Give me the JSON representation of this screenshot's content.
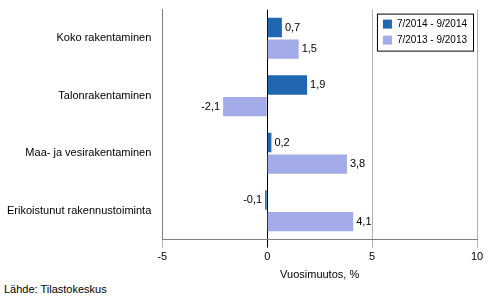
{
  "chart_data": {
    "type": "bar",
    "orientation": "horizontal",
    "categories": [
      "Koko rakentaminen",
      "Talonrakentaminen",
      "Maa- ja vesirakentaminen",
      "Erikoistunut rakennustoiminta"
    ],
    "series": [
      {
        "name": "7/2014 - 9/2014",
        "color": "#2166b0",
        "values": [
          0.7,
          1.9,
          0.2,
          -0.1
        ],
        "value_labels": [
          "0,7",
          "1,9",
          "0,2",
          "-0,1"
        ]
      },
      {
        "name": "7/2013 - 9/2013",
        "color": "#a3abe8",
        "values": [
          1.5,
          -2.1,
          3.8,
          4.1
        ],
        "value_labels": [
          "1,5",
          "-2,1",
          "3,8",
          "4,1"
        ]
      }
    ],
    "x_label": "Vuosimuutos, %",
    "xlim": [
      -5,
      10
    ],
    "xticks": [
      -5,
      0,
      5,
      10
    ],
    "grid": true,
    "legend": "top-right",
    "data_labels": true,
    "annotations": [
      "Lähde: Tilastokeskus"
    ]
  }
}
